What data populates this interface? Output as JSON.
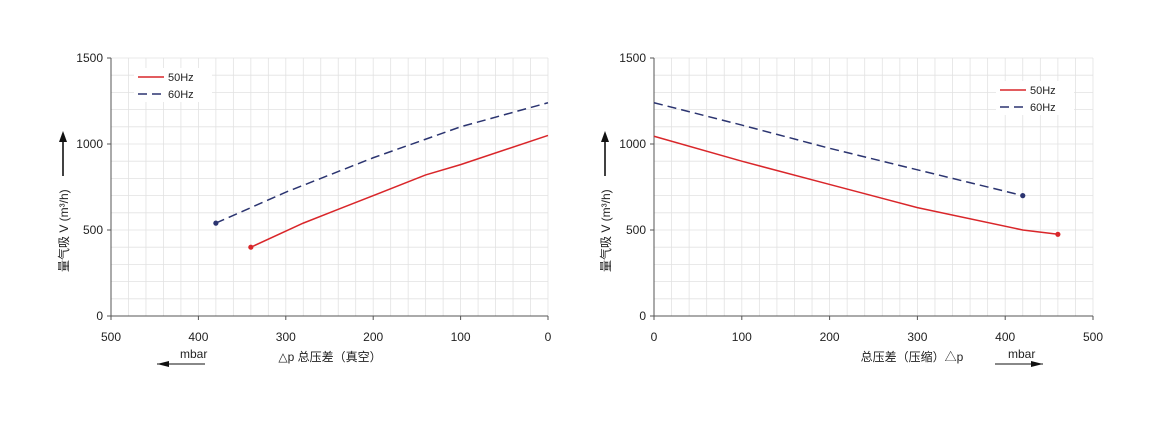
{
  "colors": {
    "series_50": "#d9262a",
    "series_60": "#2b3470",
    "grid": "#e2e2e2",
    "axis": "#555555"
  },
  "chart_data": [
    {
      "type": "line",
      "xlabel": "△p  总压差（真空）",
      "xunit": "mbar",
      "ylabel": "量气吸 V (m³/h)",
      "xlim": [
        500,
        0
      ],
      "ylim": [
        0,
        1500
      ],
      "xticks": [
        "500",
        "400",
        "300",
        "200",
        "100",
        "0"
      ],
      "yticks": [
        "0",
        "500",
        "1000",
        "1500"
      ],
      "grid": true,
      "legend_position": "top-left",
      "series": [
        {
          "name": "50Hz",
          "style": "solid",
          "points": [
            [
              340,
              400
            ],
            [
              280,
              540
            ],
            [
              240,
              620
            ],
            [
              140,
              820
            ],
            [
              100,
              880
            ],
            [
              0,
              1050
            ]
          ]
        },
        {
          "name": "60Hz",
          "style": "dashed",
          "points": [
            [
              380,
              540
            ],
            [
              300,
              720
            ],
            [
              200,
              920
            ],
            [
              100,
              1100
            ],
            [
              0,
              1240
            ]
          ]
        }
      ]
    },
    {
      "type": "line",
      "xlabel": "总压差（压缩）△p",
      "xunit": "mbar",
      "ylabel": "量气吸 V (m³/h)",
      "xlim": [
        0,
        500
      ],
      "ylim": [
        0,
        1500
      ],
      "xticks": [
        "0",
        "100",
        "200",
        "300",
        "400",
        "500"
      ],
      "yticks": [
        "0",
        "500",
        "1000",
        "1500"
      ],
      "grid": true,
      "legend_position": "top-right",
      "series": [
        {
          "name": "50Hz",
          "style": "solid",
          "points": [
            [
              0,
              1045
            ],
            [
              100,
              900
            ],
            [
              200,
              765
            ],
            [
              300,
              630
            ],
            [
              420,
              500
            ],
            [
              460,
              475
            ]
          ]
        },
        {
          "name": "60Hz",
          "style": "dashed",
          "points": [
            [
              0,
              1240
            ],
            [
              100,
              1110
            ],
            [
              200,
              975
            ],
            [
              300,
              850
            ],
            [
              420,
              700
            ]
          ]
        }
      ]
    }
  ]
}
